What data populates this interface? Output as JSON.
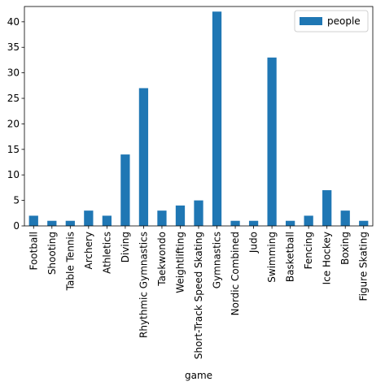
{
  "chart_data": {
    "type": "bar",
    "categories": [
      "Football",
      "Shooting",
      "Table Tennis",
      "Archery",
      "Athletics",
      "Diving",
      "Rhythmic Gymnastics",
      "Taekwondo",
      "Weightlifting",
      "Short-Track Speed Skating",
      "Gymnastics",
      "Nordic Combined",
      "Judo",
      "Swimming",
      "Basketball",
      "Fencing",
      "Ice Hockey",
      "Boxing",
      "Figure Skating"
    ],
    "series": [
      {
        "name": "people",
        "values": [
          2,
          1,
          1,
          3,
          2,
          14,
          27,
          3,
          4,
          5,
          42,
          1,
          1,
          33,
          1,
          2,
          7,
          3,
          1
        ]
      }
    ],
    "xlabel": "game",
    "ylabel": "",
    "ylim": [
      0,
      43
    ],
    "yticks": [
      0,
      5,
      10,
      15,
      20,
      25,
      30,
      35,
      40
    ],
    "grid": false,
    "legend_position": "top-right",
    "colors": {
      "bar": "#1f77b4"
    }
  }
}
